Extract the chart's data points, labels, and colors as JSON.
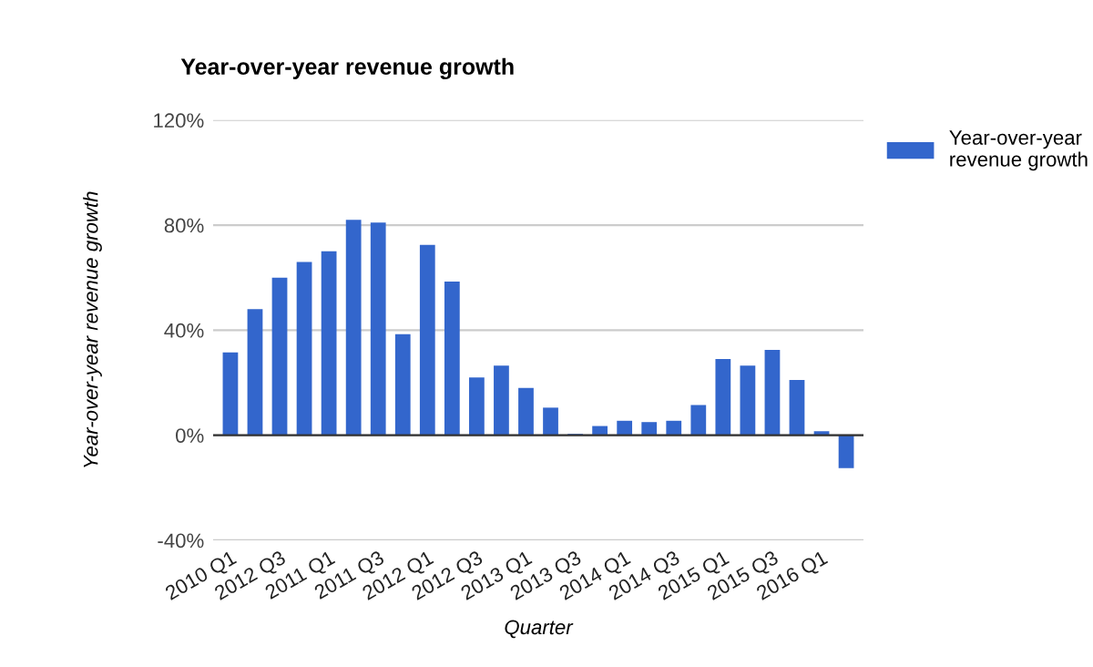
{
  "chart_data": {
    "type": "bar",
    "title": "Year-over-year revenue growth",
    "xlabel": "Quarter",
    "ylabel": "Year-over-year revenue growth",
    "categories": [
      "2010 Q1",
      null,
      "2012 Q3",
      null,
      "2011 Q1",
      null,
      "2011 Q3",
      null,
      "2012 Q1",
      null,
      "2012 Q3",
      null,
      "2013 Q1",
      null,
      "2013 Q3",
      null,
      "2014 Q1",
      null,
      "2014 Q3",
      null,
      "2015 Q1",
      null,
      "2015 Q3",
      null,
      "2016 Q1",
      null
    ],
    "series": [
      {
        "name": "Year-over-year revenue growth",
        "color": "#3366cc",
        "values": [
          31.5,
          48,
          60,
          66,
          70,
          82,
          81,
          38.5,
          72.5,
          58.5,
          22,
          26.5,
          18,
          10.5,
          0.5,
          3.5,
          5.5,
          5,
          5.5,
          11.5,
          29,
          26.5,
          32.5,
          21,
          1.5,
          -12.5
        ]
      }
    ],
    "ylim": [
      -40,
      120
    ],
    "yticks": [
      {
        "value": -40,
        "label": "-40%"
      },
      {
        "value": 0,
        "label": "0%"
      },
      {
        "value": 40,
        "label": "40%"
      },
      {
        "value": 80,
        "label": "80%"
      },
      {
        "value": 120,
        "label": "120%"
      }
    ],
    "grid": "y",
    "legend": "top right"
  }
}
